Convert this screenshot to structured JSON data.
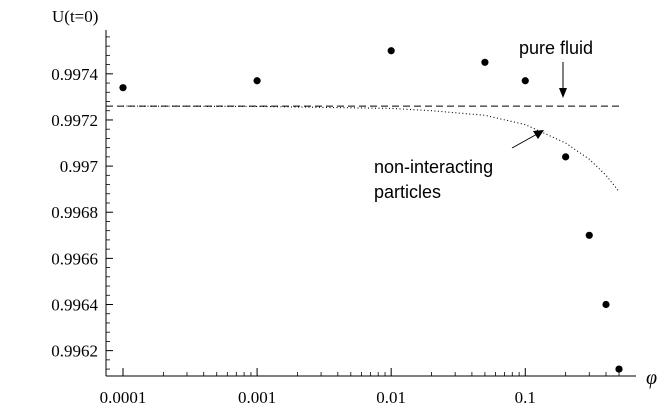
{
  "chart_data": {
    "type": "scatter",
    "ylabel": "U(t=0)",
    "xlabel": "φ",
    "x_scale": "log",
    "xlim": [
      0.0001,
      0.5
    ],
    "ylim": [
      0.99609,
      0.99759
    ],
    "x_ticks": [
      {
        "value": 0.0001,
        "label": "0.0001"
      },
      {
        "value": 0.001,
        "label": "0.001"
      },
      {
        "value": 0.01,
        "label": "0.01"
      },
      {
        "value": 0.1,
        "label": "0.1"
      }
    ],
    "y_ticks": [
      {
        "value": 0.9962,
        "label": "0.9962"
      },
      {
        "value": 0.9964,
        "label": "0.9964"
      },
      {
        "value": 0.9966,
        "label": "0.9966"
      },
      {
        "value": 0.9968,
        "label": "0.9968"
      },
      {
        "value": 0.997,
        "label": "0.997"
      },
      {
        "value": 0.9972,
        "label": "0.9972"
      },
      {
        "value": 0.9974,
        "label": "0.9974"
      }
    ],
    "points": [
      {
        "x": 0.0001,
        "y": 0.99734
      },
      {
        "x": 0.001,
        "y": 0.99737
      },
      {
        "x": 0.01,
        "y": 0.9975
      },
      {
        "x": 0.05,
        "y": 0.99745
      },
      {
        "x": 0.1,
        "y": 0.99737
      },
      {
        "x": 0.2,
        "y": 0.99704
      },
      {
        "x": 0.3,
        "y": 0.9967
      },
      {
        "x": 0.4,
        "y": 0.9964
      },
      {
        "x": 0.5,
        "y": 0.99612
      }
    ],
    "pure_fluid_value": 0.99726,
    "non_interacting_curve": [
      {
        "x": 0.0001,
        "y": 0.99726
      },
      {
        "x": 0.001,
        "y": 0.997259
      },
      {
        "x": 0.01,
        "y": 0.99725
      },
      {
        "x": 0.02,
        "y": 0.99724
      },
      {
        "x": 0.05,
        "y": 0.99722
      },
      {
        "x": 0.1,
        "y": 0.99718
      },
      {
        "x": 0.2,
        "y": 0.9971
      },
      {
        "x": 0.3,
        "y": 0.99703
      },
      {
        "x": 0.4,
        "y": 0.99696
      },
      {
        "x": 0.5,
        "y": 0.99689
      }
    ],
    "annotations": {
      "pure_fluid": "pure fluid",
      "non_interacting_line1": "non-interacting",
      "non_interacting_line2": "particles"
    }
  }
}
